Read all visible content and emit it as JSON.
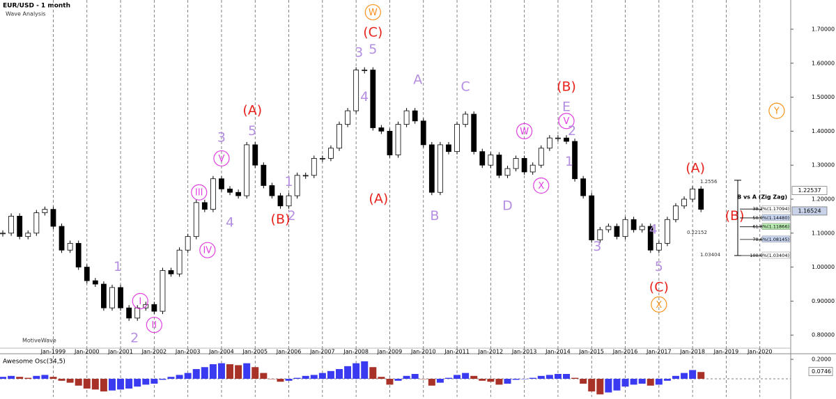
{
  "header": {
    "title": "EUR/USD - 1 month",
    "subtitle": "Wave Analysis",
    "watermark": "MotiveWave"
  },
  "chart_data": [
    {
      "type": "candlestick",
      "x": [
        "Jul-1997",
        "Oct-1997",
        "Jan-1998",
        "Apr-1998",
        "Jul-1998",
        "Oct-1998",
        "Jan-1999",
        "Apr-1999",
        "Jul-1999",
        "Oct-1999",
        "Jan-2000",
        "Apr-2000",
        "Jul-2000",
        "Oct-2000",
        "Jan-2001",
        "Apr-2001",
        "Jul-2001",
        "Oct-2001",
        "Jan-2002",
        "Apr-2002",
        "Jul-2002",
        "Oct-2002",
        "Jan-2003",
        "Apr-2003",
        "Jul-2003",
        "Oct-2003",
        "Jan-2004",
        "Apr-2004",
        "Jul-2004",
        "Oct-2004",
        "Jan-2005",
        "Apr-2005",
        "Jul-2005",
        "Oct-2005",
        "Jan-2006",
        "Apr-2006",
        "Jul-2006",
        "Oct-2006",
        "Jan-2007",
        "Apr-2007",
        "Jul-2007",
        "Oct-2007",
        "Jan-2008",
        "Apr-2008",
        "Jul-2008",
        "Oct-2008",
        "Jan-2009",
        "Apr-2009",
        "Jul-2009",
        "Oct-2009",
        "Jan-2010",
        "Apr-2010",
        "Jul-2010",
        "Oct-2010",
        "Jan-2011",
        "Apr-2011",
        "Jul-2011",
        "Oct-2011",
        "Jan-2012",
        "Apr-2012",
        "Jul-2012",
        "Oct-2012",
        "Jan-2013",
        "Apr-2013",
        "Jul-2013",
        "Oct-2013",
        "Jan-2014",
        "Apr-2014",
        "Jul-2014",
        "Oct-2014",
        "Jan-2015",
        "Apr-2015",
        "Jul-2015",
        "Oct-2015",
        "Jan-2016",
        "Apr-2016",
        "Jul-2016",
        "Oct-2016",
        "Jan-2017",
        "Apr-2017",
        "Jul-2017",
        "Oct-2017",
        "Jan-2018",
        "Apr-2018"
      ],
      "close": [
        1.1,
        1.15,
        1.09,
        1.1,
        1.16,
        1.17,
        1.12,
        1.05,
        1.07,
        1.0,
        0.96,
        0.95,
        0.88,
        0.94,
        0.88,
        0.85,
        0.88,
        0.89,
        0.87,
        0.99,
        0.98,
        1.05,
        1.09,
        1.19,
        1.17,
        1.26,
        1.23,
        1.22,
        1.21,
        1.36,
        1.3,
        1.24,
        1.21,
        1.18,
        1.21,
        1.27,
        1.27,
        1.32,
        1.32,
        1.35,
        1.42,
        1.46,
        1.58,
        1.58,
        1.41,
        1.4,
        1.33,
        1.42,
        1.46,
        1.43,
        1.36,
        1.22,
        1.36,
        1.34,
        1.42,
        1.45,
        1.34,
        1.3,
        1.33,
        1.27,
        1.29,
        1.32,
        1.28,
        1.3,
        1.35,
        1.38,
        1.38,
        1.37,
        1.26,
        1.21,
        1.08,
        1.11,
        1.12,
        1.09,
        1.14,
        1.11,
        1.12,
        1.05,
        1.07,
        1.14,
        1.18,
        1.2,
        1.23,
        1.17
      ],
      "xlim": [
        "Jun-1997",
        "Dec-2020"
      ],
      "xticks": [
        "Jan-1999",
        "Jan-2000",
        "Jan-2001",
        "Jan-2002",
        "Jan-2003",
        "Jan-2004",
        "Jan-2005",
        "Jan-2006",
        "Jan-2007",
        "Jan-2008",
        "Jan-2009",
        "Jan-2010",
        "Jan-2011",
        "Jan-2012",
        "Jan-2013",
        "Jan-2014",
        "Jan-2015",
        "Jan-2016",
        "Jan-2017",
        "Jan-2018",
        "Jan-2019",
        "Jan-2020"
      ],
      "ylim": [
        0.7615,
        1.786
      ],
      "yticks": [
        {
          "value": 1.7,
          "label": "1.70000"
        },
        {
          "value": 1.6,
          "label": "1.60000"
        },
        {
          "value": 1.5,
          "label": "1.50000"
        },
        {
          "value": 1.4,
          "label": "1.40000"
        },
        {
          "value": 1.3,
          "label": "1.30000"
        },
        {
          "value": 1.2,
          "label": "1.20000"
        },
        {
          "value": 1.1,
          "label": "1.10000"
        },
        {
          "value": 1.0,
          "label": "1.00000"
        },
        {
          "value": 0.9,
          "label": "0.90000"
        },
        {
          "value": 0.8,
          "label": "0.80000"
        }
      ],
      "grid": true,
      "up_color": "#ffffff",
      "down_color": "#000000",
      "annotations": [
        {
          "text": "W",
          "x": "Jul-2008",
          "y": 1.75,
          "color": "#f7931e",
          "circled": true
        },
        {
          "text": "(C)",
          "x": "Jul-2008",
          "y": 1.69,
          "color": "#e8221d",
          "circled": false
        },
        {
          "text": "3",
          "x": "Feb-2008",
          "y": 1.63,
          "color": "#b48ee0",
          "circled": false
        },
        {
          "text": "5",
          "x": "Jul-2008",
          "y": 1.64,
          "color": "#b48ee0",
          "circled": false
        },
        {
          "text": "4",
          "x": "Apr-2008",
          "y": 1.5,
          "color": "#b48ee0",
          "circled": false
        },
        {
          "text": "(A)",
          "x": "Sep-2008",
          "y": 1.2,
          "color": "#e8221d",
          "circled": false
        },
        {
          "text": "A",
          "x": "Nov-2009",
          "y": 1.55,
          "color": "#b48ee0",
          "circled": false
        },
        {
          "text": "B",
          "x": "May-2010",
          "y": 1.15,
          "color": "#b48ee0",
          "circled": false
        },
        {
          "text": "C",
          "x": "Apr-2011",
          "y": 1.53,
          "color": "#b48ee0",
          "circled": false
        },
        {
          "text": "D",
          "x": "Jul-2012",
          "y": 1.18,
          "color": "#b48ee0",
          "circled": false
        },
        {
          "text": "W",
          "x": "Jan-2013",
          "y": 1.4,
          "color": "#e040e0",
          "circled": true
        },
        {
          "text": "X",
          "x": "Jul-2013",
          "y": 1.24,
          "color": "#e040e0",
          "circled": true
        },
        {
          "text": "(B)",
          "x": "Apr-2014",
          "y": 1.53,
          "color": "#e8221d",
          "circled": false
        },
        {
          "text": "E",
          "x": "Apr-2014",
          "y": 1.47,
          "color": "#b48ee0",
          "circled": false
        },
        {
          "text": "V",
          "x": "Apr-2014",
          "y": 1.43,
          "color": "#e040e0",
          "circled": true
        },
        {
          "text": "2",
          "x": "Jun-2014",
          "y": 1.4,
          "color": "#b48ee0",
          "circled": false
        },
        {
          "text": "1",
          "x": "May-2014",
          "y": 1.31,
          "color": "#b48ee0",
          "circled": false
        },
        {
          "text": "(A)",
          "x": "Dec-2004",
          "y": 1.46,
          "color": "#e8221d",
          "circled": false
        },
        {
          "text": "5",
          "x": "Dec-2004",
          "y": 1.4,
          "color": "#b48ee0",
          "circled": false
        },
        {
          "text": "3",
          "x": "Jan-2004",
          "y": 1.38,
          "color": "#b48ee0",
          "circled": false
        },
        {
          "text": "V",
          "x": "Jan-2004",
          "y": 1.32,
          "color": "#e040e0",
          "circled": true
        },
        {
          "text": "III",
          "x": "May-2003",
          "y": 1.22,
          "color": "#e040e0",
          "circled": true
        },
        {
          "text": "4",
          "x": "Apr-2004",
          "y": 1.13,
          "color": "#b48ee0",
          "circled": false
        },
        {
          "text": "IV",
          "x": "Aug-2003",
          "y": 1.05,
          "color": "#e040e0",
          "circled": true
        },
        {
          "text": "1",
          "x": "Jan-2006",
          "y": 1.25,
          "color": "#b48ee0",
          "circled": false
        },
        {
          "text": "2",
          "x": "Feb-2006",
          "y": 1.15,
          "color": "#b48ee0",
          "circled": false
        },
        {
          "text": "(B)",
          "x": "Oct-2005",
          "y": 1.14,
          "color": "#e8221d",
          "circled": false
        },
        {
          "text": "1",
          "x": "Dec-2000",
          "y": 1.0,
          "color": "#b48ee0",
          "circled": false
        },
        {
          "text": "I",
          "x": "Aug-2001",
          "y": 0.9,
          "color": "#e040e0",
          "circled": true
        },
        {
          "text": "II",
          "x": "Jan-2002",
          "y": 0.83,
          "color": "#e040e0",
          "circled": true
        },
        {
          "text": "2",
          "x": "Jun-2001",
          "y": 0.79,
          "color": "#b48ee0",
          "circled": false
        },
        {
          "text": "3",
          "x": "Mar-2015",
          "y": 1.06,
          "color": "#b48ee0",
          "circled": false
        },
        {
          "text": "4",
          "x": "Nov-2016",
          "y": 1.11,
          "color": "#b48ee0",
          "circled": false
        },
        {
          "text": "5",
          "x": "Jan-2017",
          "y": 1.0,
          "color": "#b48ee0",
          "circled": false
        },
        {
          "text": "(C)",
          "x": "Jan-2017",
          "y": 0.94,
          "color": "#e8221d",
          "circled": false
        },
        {
          "text": "X",
          "x": "Jan-2017",
          "y": 0.89,
          "color": "#f7931e",
          "circled": true
        },
        {
          "text": "(A)",
          "x": "Feb-2018",
          "y": 1.29,
          "color": "#e8221d",
          "circled": false
        },
        {
          "text": "(B)",
          "x": "Apr-2019",
          "y": 1.15,
          "color": "#e8221d",
          "circled": false
        },
        {
          "text": "Y",
          "x": "Jul-2020",
          "y": 1.46,
          "color": "#f7931e",
          "circled": true
        }
      ],
      "fib": {
        "title": "B vs A (Zig Zag)",
        "top": 1.2556,
        "bottom": 1.03404,
        "range": 0.22152,
        "levels": [
          {
            "value": 1.17094,
            "label": "38.2%(1.17094)"
          },
          {
            "value": 1.1448,
            "label": "50.0%(1.14480)"
          },
          {
            "value": 1.11866,
            "label": "61.8%(1.11866)"
          },
          {
            "value": 1.08145,
            "label": "78.6%(1.08145)"
          },
          {
            "value": 1.03404,
            "label": "100.0%(1.03404)"
          }
        ]
      },
      "price_labels": [
        1.22537,
        1.16524
      ]
    },
    {
      "type": "bar",
      "title": "Awesome Osc(34,5)",
      "x": [
        "Jul-1997",
        "Oct-1997",
        "Jan-1998",
        "Apr-1998",
        "Jul-1998",
        "Oct-1998",
        "Jan-1999",
        "Apr-1999",
        "Jul-1999",
        "Oct-1999",
        "Jan-2000",
        "Apr-2000",
        "Jul-2000",
        "Oct-2000",
        "Jan-2001",
        "Apr-2001",
        "Jul-2001",
        "Oct-2001",
        "Jan-2002",
        "Apr-2002",
        "Jul-2002",
        "Oct-2002",
        "Jan-2003",
        "Apr-2003",
        "Jul-2003",
        "Oct-2003",
        "Jan-2004",
        "Apr-2004",
        "Jul-2004",
        "Oct-2004",
        "Jan-2005",
        "Apr-2005",
        "Jul-2005",
        "Oct-2005",
        "Jan-2006",
        "Apr-2006",
        "Jul-2006",
        "Oct-2006",
        "Jan-2007",
        "Apr-2007",
        "Jul-2007",
        "Oct-2007",
        "Jan-2008",
        "Apr-2008",
        "Jul-2008",
        "Oct-2008",
        "Jan-2009",
        "Apr-2009",
        "Jul-2009",
        "Oct-2009",
        "Jan-2010",
        "Apr-2010",
        "Jul-2010",
        "Oct-2010",
        "Jan-2011",
        "Apr-2011",
        "Jul-2011",
        "Oct-2011",
        "Jan-2012",
        "Apr-2012",
        "Jul-2012",
        "Oct-2012",
        "Jan-2013",
        "Apr-2013",
        "Jul-2013",
        "Oct-2013",
        "Jan-2014",
        "Apr-2014",
        "Jul-2014",
        "Oct-2014",
        "Jan-2015",
        "Apr-2015",
        "Jul-2015",
        "Oct-2015",
        "Jan-2016",
        "Apr-2016",
        "Jul-2016",
        "Oct-2016",
        "Jan-2017",
        "Apr-2017",
        "Jul-2017",
        "Oct-2017",
        "Jan-2018",
        "Apr-2018"
      ],
      "values": [
        0.02,
        0.03,
        0.02,
        0.01,
        0.03,
        0.04,
        0.02,
        -0.02,
        -0.04,
        -0.07,
        -0.1,
        -0.11,
        -0.13,
        -0.12,
        -0.11,
        -0.1,
        -0.08,
        -0.06,
        -0.05,
        -0.01,
        0.02,
        0.04,
        0.06,
        0.1,
        0.12,
        0.15,
        0.16,
        0.15,
        0.14,
        0.16,
        0.12,
        0.06,
        0.0,
        -0.03,
        -0.02,
        0.01,
        0.03,
        0.04,
        0.06,
        0.08,
        0.1,
        0.13,
        0.16,
        0.18,
        0.12,
        0.02,
        -0.06,
        -0.02,
        0.03,
        0.05,
        0.0,
        -0.07,
        -0.04,
        0.01,
        0.04,
        0.06,
        0.03,
        -0.02,
        -0.03,
        -0.06,
        -0.05,
        -0.01,
        0.0,
        0.01,
        0.03,
        0.04,
        0.05,
        0.05,
        0.01,
        -0.05,
        -0.13,
        -0.16,
        -0.14,
        -0.12,
        -0.08,
        -0.06,
        -0.05,
        -0.07,
        -0.06,
        -0.02,
        0.03,
        0.06,
        0.09,
        0.07
      ],
      "ylim": [
        -0.186,
        0.229
      ],
      "yticks": [
        {
          "value": 0.2,
          "label": "0.2000"
        }
      ],
      "current": {
        "value": 0.0746,
        "label": "0.0746"
      },
      "up_color": "#3a3af0",
      "down_color": "#a83228"
    }
  ]
}
